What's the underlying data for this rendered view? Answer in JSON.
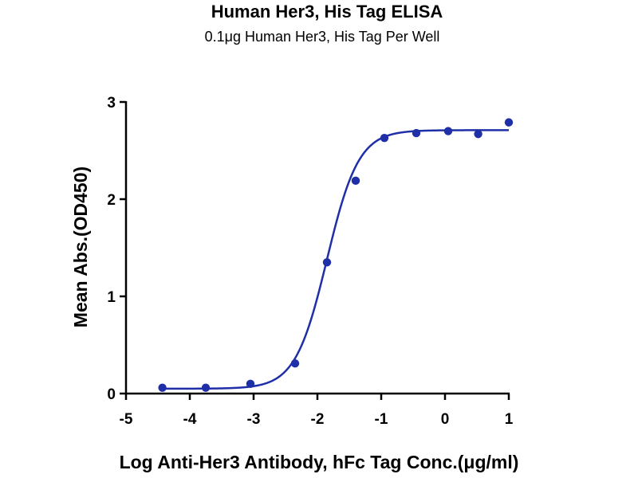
{
  "chart_data": {
    "type": "scatter",
    "title": "Human Her3, His Tag ELISA",
    "subtitle": "0.1μg Human Her3, His Tag Per Well",
    "xlabel": "Log Anti-Her3 Antibody, hFc Tag Conc.(μg/ml)",
    "ylabel": "Mean Abs.(OD450)",
    "xlim": [
      -5,
      1
    ],
    "ylim": [
      0,
      3
    ],
    "x_ticks": [
      "-5",
      "-4",
      "-3",
      "-2",
      "-1",
      "0",
      "1"
    ],
    "y_ticks": [
      "0",
      "1",
      "2",
      "3"
    ],
    "grid": false,
    "legend": "none",
    "series": [
      {
        "marker_color": "#1f2fa8",
        "fit": "sigmoidal 4PL",
        "fit_params": {
          "bottom": 0.05,
          "top": 2.71,
          "logEC50": -1.85,
          "hill": 1.75
        },
        "points": [
          {
            "x": -4.43,
            "y": 0.06
          },
          {
            "x": -3.75,
            "y": 0.06
          },
          {
            "x": -3.05,
            "y": 0.1
          },
          {
            "x": -2.35,
            "y": 0.31
          },
          {
            "x": -1.85,
            "y": 1.35
          },
          {
            "x": -1.4,
            "y": 2.19
          },
          {
            "x": -0.95,
            "y": 2.63
          },
          {
            "x": -0.45,
            "y": 2.68
          },
          {
            "x": 0.05,
            "y": 2.7
          },
          {
            "x": 0.52,
            "y": 2.67
          },
          {
            "x": 1.0,
            "y": 2.79
          }
        ]
      }
    ]
  }
}
